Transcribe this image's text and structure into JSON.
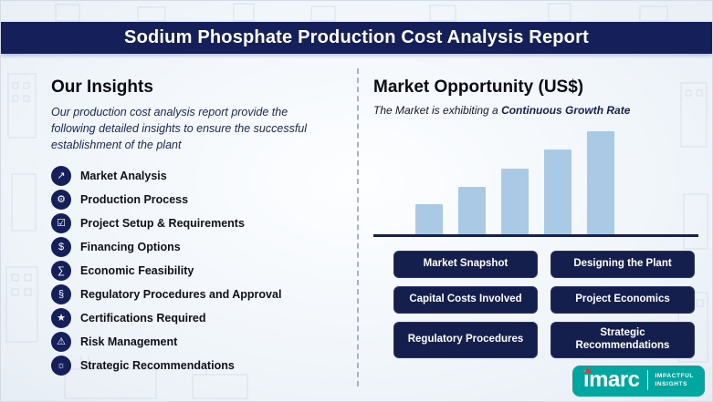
{
  "banner": {
    "title": "Sodium Phosphate Production Cost Analysis Report"
  },
  "insights": {
    "heading": "Our Insights",
    "intro": "Our production cost analysis report provide the following detailed insights to ensure the successful establishment of the plant",
    "items": [
      {
        "label": "Market Analysis",
        "icon": "market-analysis-icon",
        "glyph": "↗"
      },
      {
        "label": "Production Process",
        "icon": "production-process-icon",
        "glyph": "⚙"
      },
      {
        "label": "Project Setup & Requirements",
        "icon": "project-setup-icon",
        "glyph": "☑"
      },
      {
        "label": "Financing Options",
        "icon": "financing-options-icon",
        "glyph": "$"
      },
      {
        "label": "Economic Feasibility",
        "icon": "economic-feasibility-icon",
        "glyph": "∑"
      },
      {
        "label": "Regulatory Procedures and Approval",
        "icon": "regulatory-approval-icon",
        "glyph": "§"
      },
      {
        "label": "Certifications Required",
        "icon": "certifications-icon",
        "glyph": "★"
      },
      {
        "label": "Risk Management",
        "icon": "risk-management-icon",
        "glyph": "⚠"
      },
      {
        "label": "Strategic Recommendations",
        "icon": "strategic-recommendations-icon",
        "glyph": "☼"
      }
    ]
  },
  "market": {
    "heading": "Market Opportunity (US$)",
    "subtitle_prefix": "The Market is exhibiting a ",
    "subtitle_highlight": "Continuous Growth Rate",
    "buttons": [
      {
        "label": "Market Snapshot"
      },
      {
        "label": "Designing the Plant"
      },
      {
        "label": "Capital Costs Involved"
      },
      {
        "label": "Project Economics"
      },
      {
        "label": "Regulatory Procedures"
      },
      {
        "label": "Strategic Recommendations"
      }
    ]
  },
  "chart_data": {
    "type": "bar",
    "title": "Market Opportunity (US$)",
    "categories": [
      "",
      "",
      "",
      "",
      ""
    ],
    "values": [
      33,
      52,
      73,
      94,
      114
    ],
    "ylim": [
      0,
      120
    ],
    "xlabel": "",
    "ylabel": "",
    "grid": false,
    "legend": false,
    "bar_color": "#a9c9e4",
    "baseline_color": "#15205a"
  },
  "logo": {
    "brand": "imarc",
    "tagline_line1": "IMPACTFUL",
    "tagline_line2": "INSIGHTS"
  },
  "colors": {
    "navy": "#15205a",
    "teal": "#00a6a0",
    "bar_blue": "#a9c9e4"
  }
}
